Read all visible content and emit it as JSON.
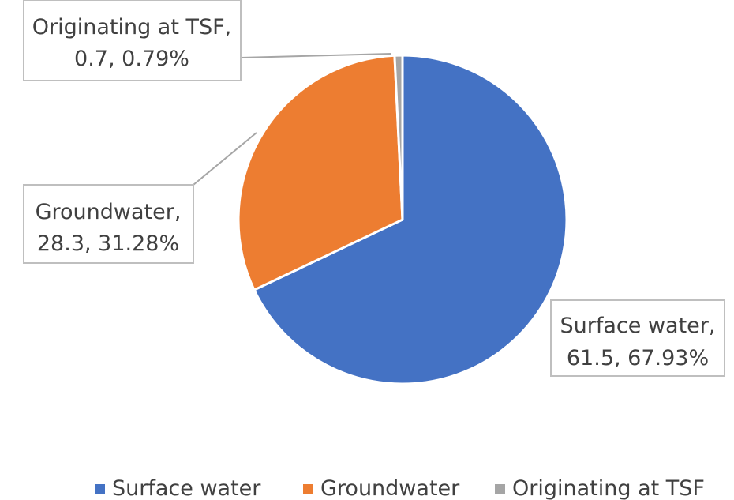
{
  "chart_data": {
    "type": "pie",
    "title": "",
    "categories": [
      "Surface water",
      "Groundwater",
      "Originating at TSF"
    ],
    "values": [
      61.5,
      28.3,
      0.7
    ],
    "percentages": [
      "67.93%",
      "31.28%",
      "0.79%"
    ],
    "colors": [
      "#4472C4",
      "#ED7D31",
      "#A5A5A5"
    ],
    "labels": [
      {
        "line1": "Surface water,",
        "line2": "61.5, 67.93%"
      },
      {
        "line1": "Groundwater,",
        "line2": "28.3, 31.28%"
      },
      {
        "line1": "Originating at TSF,",
        "line2": "0.7, 0.79%"
      }
    ],
    "legend": {
      "position": "bottom",
      "entries": [
        "Surface water",
        "Groundwater",
        "Originating at TSF"
      ]
    }
  }
}
